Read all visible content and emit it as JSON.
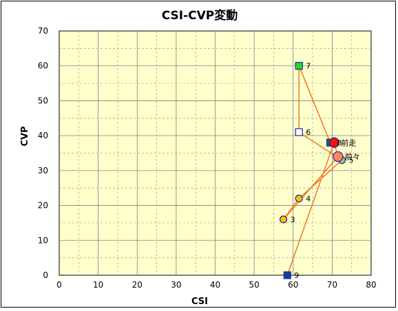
{
  "chart_data": {
    "type": "scatter",
    "title": "CSI-CVP変動",
    "xlabel": "CSI",
    "ylabel": "CVP",
    "xlim": [
      0,
      80
    ],
    "ylim": [
      0,
      70
    ],
    "x_ticks": [
      0,
      10,
      20,
      30,
      40,
      50,
      60,
      70,
      80
    ],
    "y_ticks": [
      0,
      10,
      20,
      30,
      40,
      50,
      60,
      70
    ],
    "grid": true,
    "colors": {
      "plot_background": "#ffffcc",
      "grid_solid": "#808080",
      "grid_dashed": "#a0a0a0",
      "line": "#f07820"
    },
    "path_order": [
      "9",
      "前走",
      "前々",
      "3",
      "4",
      "5",
      "6",
      "7",
      "8"
    ],
    "points": [
      {
        "label": "3",
        "x": 57.5,
        "y": 16,
        "marker": "circle",
        "fill": "#ffc000",
        "stroke": "#2020a0"
      },
      {
        "label": "4",
        "x": 61.5,
        "y": 22,
        "marker": "circle",
        "fill": "#ffc000",
        "stroke": "#2020a0"
      },
      {
        "label": "5",
        "x": 72.5,
        "y": 33,
        "marker": "circle",
        "fill": "#99cc66",
        "stroke": "#2020a0"
      },
      {
        "label": "6",
        "x": 61.5,
        "y": 41,
        "marker": "square",
        "fill": "#ffffff",
        "stroke": "#2020a0"
      },
      {
        "label": "7",
        "x": 61.5,
        "y": 60,
        "marker": "square",
        "fill": "#22dd22",
        "stroke": "#2020a0"
      },
      {
        "label": "8",
        "x": 69.5,
        "y": 38,
        "marker": "square",
        "fill": "#117733",
        "stroke": "#2020a0"
      },
      {
        "label": "9",
        "x": 58.5,
        "y": 0,
        "marker": "square",
        "fill": "#1a3a9a",
        "stroke": "#1a3a9a"
      },
      {
        "label": "前走",
        "x": 70.5,
        "y": 38,
        "marker": "circle-large",
        "fill": "#ee1111",
        "stroke": "#2020a0"
      },
      {
        "label": "前々",
        "x": 71.5,
        "y": 34,
        "marker": "circle-large",
        "fill": "#ff8866",
        "stroke": "#2020a0"
      }
    ]
  }
}
